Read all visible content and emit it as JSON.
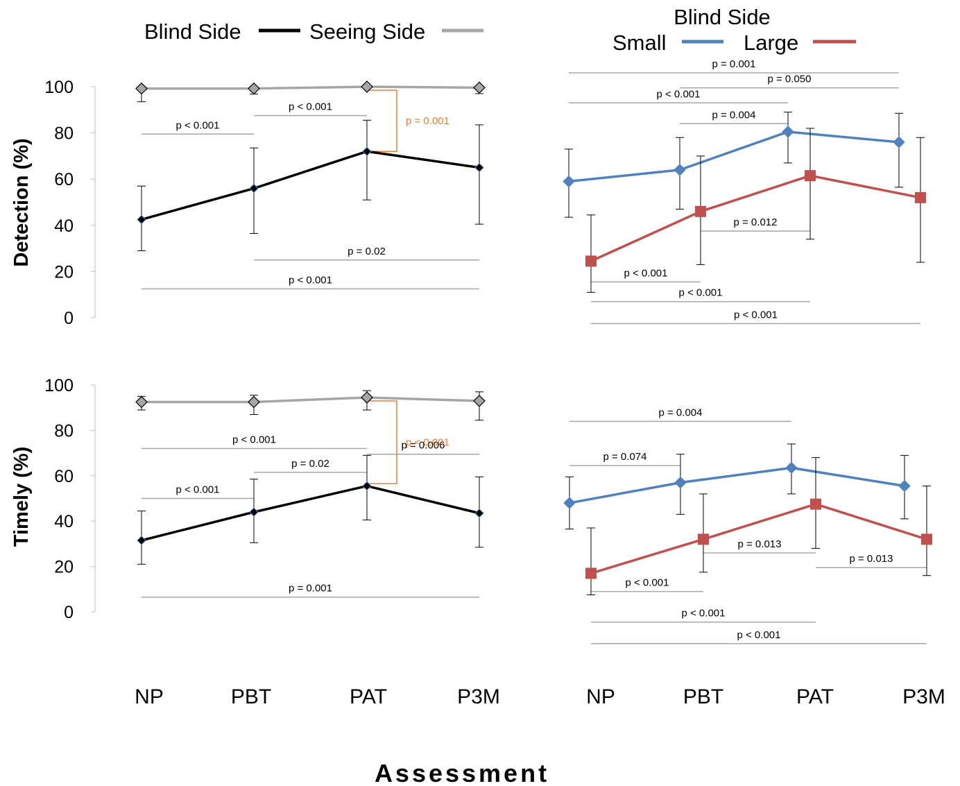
{
  "x_axis_label": "Assessment",
  "legend_left": {
    "series": [
      {
        "name": "Blind Side",
        "color": "#000000"
      },
      {
        "name": "Seeing Side",
        "color": "#a6a6a6"
      }
    ]
  },
  "legend_right": {
    "title": "Blind Side",
    "series": [
      {
        "name": "Small",
        "color": "#4f81bd"
      },
      {
        "name": "Large",
        "color": "#c0504d"
      }
    ]
  },
  "chart_data": [
    {
      "type": "line",
      "ylabel": "Detection (%)",
      "categories": [
        "NP",
        "PBT",
        "PAT",
        "P3M"
      ],
      "ylim": [
        0,
        100
      ],
      "yticks": [
        0,
        20,
        40,
        60,
        80,
        100
      ],
      "series": [
        {
          "name": "Blind Side",
          "color": "#000000",
          "marker": "diamond",
          "values": [
            42.5,
            56,
            72,
            65
          ],
          "err_low": [
            29,
            36.5,
            51,
            40.5
          ],
          "err_high": [
            57,
            73.5,
            85.5,
            83.5
          ]
        },
        {
          "name": "Seeing Side",
          "color": "#a6a6a6",
          "marker": "diamond",
          "values": [
            99.2,
            99.2,
            100,
            99.6
          ],
          "err_low": [
            93.5,
            96.8,
            100,
            97
          ],
          "err_high": [
            100,
            100,
            100,
            100
          ]
        }
      ],
      "comparisons": [
        {
          "text": "p < 0.001",
          "from": "NP",
          "to": "PBT",
          "y": 79.5,
          "color": "#a6a6a6"
        },
        {
          "text": "p < 0.001",
          "from": "PBT",
          "to": "PAT",
          "y": 87.5,
          "color": "#a6a6a6"
        },
        {
          "text": "p = 0.02",
          "from": "PBT",
          "to": "P3M",
          "y": 25,
          "color": "#a6a6a6"
        },
        {
          "text": "p < 0.001",
          "from": "NP",
          "to": "P3M",
          "y": 12.5,
          "color": "#a6a6a6"
        },
        {
          "text": "p = 0.001",
          "bracket_at": "PAT",
          "y_from": 72,
          "y_to": 98.5,
          "color": "#ed7d31"
        }
      ]
    },
    {
      "type": "line",
      "ylabel": "",
      "categories": [
        "NP",
        "PBT",
        "PAT",
        "P3M"
      ],
      "ylim": [
        0,
        100
      ],
      "series": [
        {
          "name": "Small",
          "color": "#4f81bd",
          "marker": "diamond",
          "values": [
            59,
            64,
            80.5,
            76
          ],
          "err_low": [
            43.5,
            47,
            67,
            56.5
          ],
          "err_high": [
            73,
            78,
            89,
            88.5
          ]
        },
        {
          "name": "Large",
          "color": "#c0504d",
          "marker": "square",
          "values": [
            24.5,
            46,
            61.5,
            52
          ],
          "err_low": [
            11,
            23,
            34,
            24
          ],
          "err_high": [
            44.5,
            70,
            82,
            78
          ]
        }
      ],
      "comparisons": [
        {
          "text": "p = 0.001",
          "from": "NP",
          "to": "P3M",
          "y": 106,
          "color": "#a6a6a6"
        },
        {
          "text": "p = 0.050",
          "from": "PBT",
          "to": "P3M",
          "y": 99.5,
          "color": "#a6a6a6"
        },
        {
          "text": "p < 0.001",
          "from": "NP",
          "to": "PAT",
          "y": 93,
          "color": "#a6a6a6"
        },
        {
          "text": "p = 0.004",
          "from": "PBT",
          "to": "PAT",
          "y": 84,
          "color": "#a6a6a6"
        },
        {
          "text": "p = 0.012",
          "from": "PBT",
          "to": "PAT",
          "y": 37.5,
          "color": "#a6a6a6"
        },
        {
          "text": "p < 0.001",
          "from": "NP",
          "to": "PBT",
          "y": 15.5,
          "color": "#a6a6a6"
        },
        {
          "text": "p < 0.001",
          "from": "NP",
          "to": "PAT",
          "y": 7,
          "color": "#a6a6a6"
        },
        {
          "text": "p < 0.001",
          "from": "NP",
          "to": "P3M",
          "y": -2.5,
          "color": "#a6a6a6"
        }
      ]
    },
    {
      "type": "line",
      "ylabel": "Timely (%)",
      "categories": [
        "NP",
        "PBT",
        "PAT",
        "P3M"
      ],
      "ylim": [
        0,
        100
      ],
      "yticks": [
        0,
        20,
        40,
        60,
        80,
        100
      ],
      "series": [
        {
          "name": "Blind Side",
          "color": "#000000",
          "marker": "diamond",
          "values": [
            31.5,
            44,
            55.5,
            43.5
          ],
          "err_low": [
            21,
            30.5,
            40.5,
            28.5
          ],
          "err_high": [
            44.5,
            58.5,
            69,
            59.5
          ]
        },
        {
          "name": "Seeing Side",
          "color": "#a6a6a6",
          "marker": "diamond",
          "values": [
            92.5,
            92.5,
            94.5,
            93
          ],
          "err_low": [
            89,
            87,
            89,
            84.5
          ],
          "err_high": [
            95,
            95.5,
            97.5,
            97
          ]
        }
      ],
      "comparisons": [
        {
          "text": "p < 0.001",
          "from": "NP",
          "to": "PAT",
          "y": 72,
          "color": "#a6a6a6"
        },
        {
          "text": "p = 0.02",
          "from": "PBT",
          "to": "PAT",
          "y": 61.5,
          "color": "#a6a6a6"
        },
        {
          "text": "p = 0.006",
          "from": "PAT",
          "to": "P3M",
          "y": 69.5,
          "color": "#a6a6a6"
        },
        {
          "text": "p < 0.001",
          "from": "NP",
          "to": "PBT",
          "y": 50,
          "color": "#a6a6a6"
        },
        {
          "text": "p = 0.001",
          "from": "NP",
          "to": "P3M",
          "y": 6.5,
          "color": "#a6a6a6"
        },
        {
          "text": "p < 0.001",
          "bracket_at": "PAT",
          "y_from": 56.5,
          "y_to": 93,
          "color": "#ed7d31"
        }
      ]
    },
    {
      "type": "line",
      "ylabel": "",
      "categories": [
        "NP",
        "PBT",
        "PAT",
        "P3M"
      ],
      "ylim": [
        0,
        100
      ],
      "series": [
        {
          "name": "Small",
          "color": "#4f81bd",
          "marker": "diamond",
          "values": [
            48,
            57,
            63.5,
            55.5
          ],
          "err_low": [
            36.5,
            43,
            52,
            41
          ],
          "err_high": [
            59.5,
            69.5,
            74,
            69
          ]
        },
        {
          "name": "Large",
          "color": "#c0504d",
          "marker": "square",
          "values": [
            17,
            32,
            47.5,
            32
          ],
          "err_low": [
            7.5,
            17.5,
            28,
            16
          ],
          "err_high": [
            37,
            52,
            68,
            55.5
          ]
        }
      ],
      "comparisons": [
        {
          "text": "p = 0.004",
          "from": "NP",
          "to": "PAT",
          "y": 84,
          "color": "#a6a6a6"
        },
        {
          "text": "p = 0.074",
          "from": "NP",
          "to": "PBT",
          "y": 64.5,
          "color": "#a6a6a6"
        },
        {
          "text": "p = 0.013",
          "from": "PBT",
          "to": "PAT",
          "y": 26,
          "color": "#a6a6a6"
        },
        {
          "text": "p = 0.013",
          "from": "PAT",
          "to": "P3M",
          "y": 19.5,
          "color": "#a6a6a6"
        },
        {
          "text": "p < 0.001",
          "from": "NP",
          "to": "PBT",
          "y": 9,
          "color": "#a6a6a6"
        },
        {
          "text": "p < 0.001",
          "from": "NP",
          "to": "PAT",
          "y": -4.5,
          "color": "#a6a6a6"
        },
        {
          "text": "p < 0.001",
          "from": "NP",
          "to": "P3M",
          "y": -14,
          "color": "#a6a6a6"
        }
      ]
    }
  ]
}
